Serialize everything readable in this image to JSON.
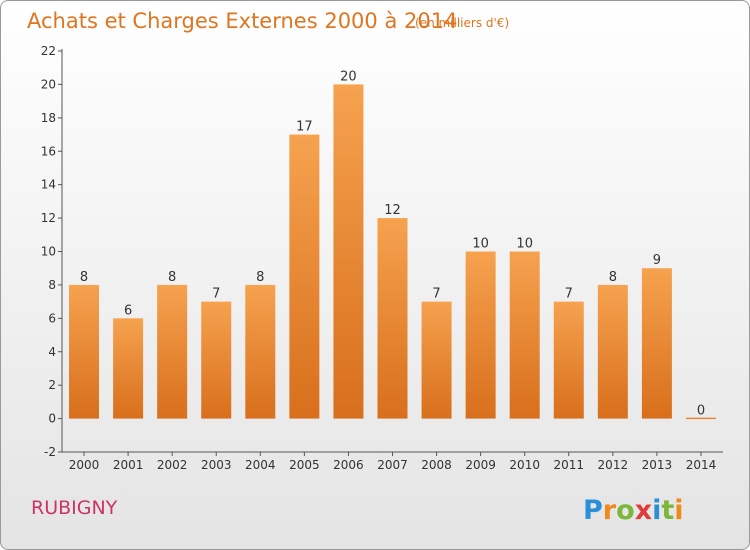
{
  "chart_data": {
    "type": "bar",
    "title": "Achats et Charges Externes 2000 à 2014",
    "unit": "(en milliers d'€)",
    "categories": [
      "2000",
      "2001",
      "2002",
      "2003",
      "2004",
      "2005",
      "2006",
      "2007",
      "2008",
      "2009",
      "2010",
      "2011",
      "2012",
      "2013",
      "2014"
    ],
    "values": [
      8,
      6,
      8,
      7,
      8,
      17,
      20,
      12,
      7,
      10,
      10,
      7,
      8,
      9,
      0
    ],
    "ylim": [
      -2,
      22
    ],
    "yticks": [
      -2,
      0,
      2,
      4,
      6,
      8,
      10,
      12,
      14,
      16,
      18,
      20,
      22
    ],
    "grid": false,
    "bar_color_top": "#f6a24f",
    "bar_color_bottom": "#d86f1c",
    "title_color": "#e1751f"
  },
  "footer": {
    "place": "RUBIGNY",
    "brand": "Proxiti"
  }
}
